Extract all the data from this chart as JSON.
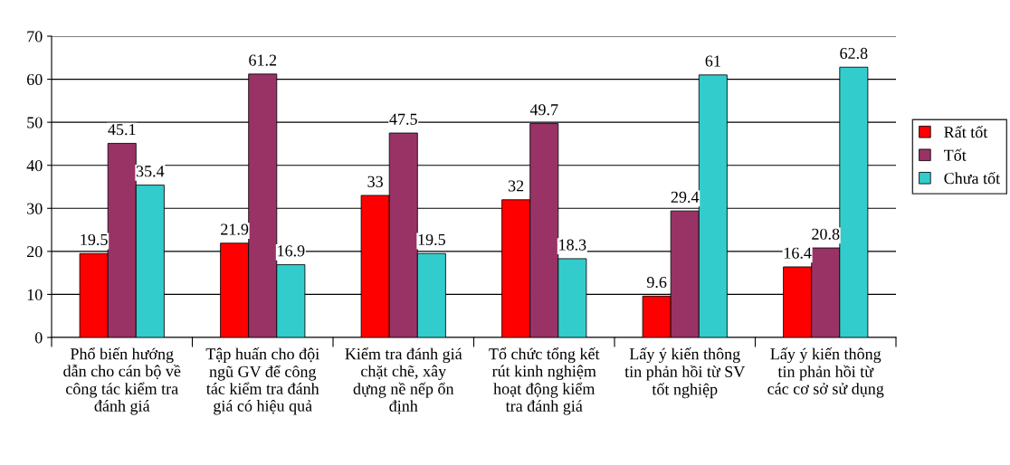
{
  "chart_data": {
    "type": "bar",
    "categories": [
      "Phổ biến hướng\ndẫn cho cán bộ về\ncông tác kiểm tra\nđánh giá",
      "Tập huấn cho đội\nngũ GV để công\ntác kiểm tra đánh\ngiá có hiệu quả",
      "Kiểm tra đánh giá\nchặt chẽ, xây\ndựng nề nếp ổn\nđịnh",
      "Tổ chức tổng kết\nrút kinh nghiệm\nhoạt động kiểm\ntra đánh giá",
      "Lấy ý kiến thông\ntin phản hồi từ SV\ntốt nghiệp",
      "Lấy ý kiến thông\ntin phản hồi từ\ncác cơ sở sử dụng"
    ],
    "series": [
      {
        "name": "Rất tốt",
        "color": "#ff0000",
        "values": [
          19.5,
          21.9,
          33,
          32,
          9.6,
          16.4
        ]
      },
      {
        "name": "Tốt",
        "color": "#993366",
        "values": [
          45.1,
          61.2,
          47.5,
          49.7,
          29.4,
          20.8
        ]
      },
      {
        "name": "Chưa tốt",
        "color": "#33cccc",
        "values": [
          35.4,
          16.9,
          19.5,
          18.3,
          61,
          62.8
        ]
      }
    ],
    "ylim": [
      0,
      70
    ],
    "yticks": [
      0,
      10,
      20,
      30,
      40,
      50,
      60,
      70
    ],
    "grid": "y",
    "legend": "right",
    "data_labels": true
  }
}
